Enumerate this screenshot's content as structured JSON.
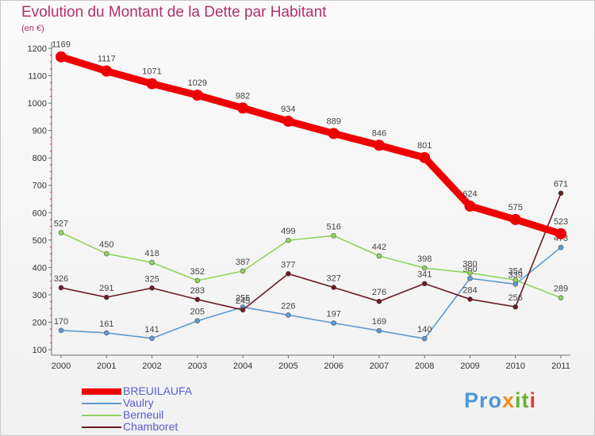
{
  "chart_data": {
    "type": "line",
    "title": "Evolution du Montant de la Dette par Habitant",
    "subtitle": "(en €)",
    "x": [
      "2000",
      "2001",
      "2002",
      "2003",
      "2004",
      "2005",
      "2006",
      "2007",
      "2008",
      "2009",
      "2010",
      "2011"
    ],
    "ylim": [
      100,
      1200
    ],
    "yticks": [
      "100",
      "200",
      "300",
      "400",
      "500",
      "600",
      "700",
      "800",
      "900",
      "1000",
      "1100",
      "1200"
    ],
    "grid": false,
    "legend_position": "bottom-left",
    "series": [
      {
        "name": "BREUILAUFA",
        "color": "#ee0000",
        "values": [
          1169,
          1117,
          1071,
          1029,
          982,
          934,
          889,
          846,
          801,
          624,
          575,
          523
        ]
      },
      {
        "name": "Vaulry",
        "color": "#5c9ad2",
        "values": [
          170,
          161,
          141,
          205,
          255,
          226,
          197,
          169,
          140,
          360,
          339,
          473
        ]
      },
      {
        "name": "Berneuil",
        "color": "#8fd45c",
        "values": [
          527,
          450,
          418,
          352,
          387,
          499,
          516,
          442,
          398,
          380,
          354,
          289
        ]
      },
      {
        "name": "Chamboret",
        "color": "#6b1a22",
        "values": [
          326,
          291,
          325,
          283,
          245,
          377,
          327,
          276,
          341,
          284,
          256,
          671
        ]
      }
    ]
  },
  "logo": {
    "parts": [
      "Pro",
      "x",
      "it",
      "i"
    ]
  }
}
